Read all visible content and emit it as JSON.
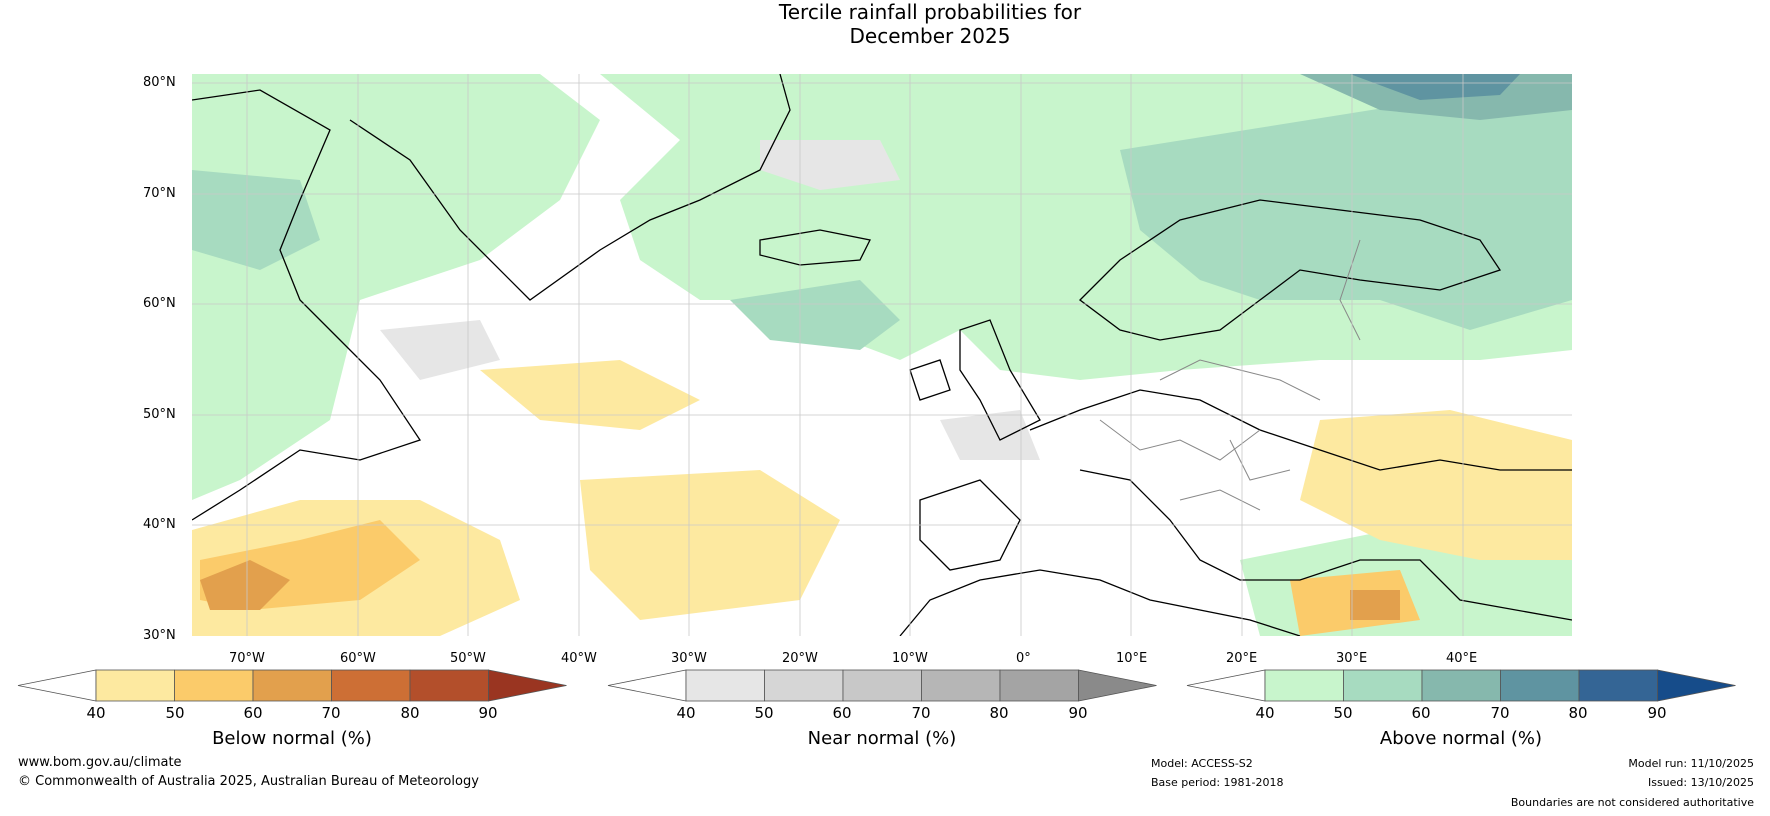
{
  "title": {
    "line1": "Tercile rainfall probabilities for",
    "line2": "December 2025"
  },
  "map": {
    "lat_labels": [
      "80°N",
      "70°N",
      "60°N",
      "50°N",
      "40°N",
      "30°N"
    ],
    "lon_labels": [
      "70°W",
      "60°W",
      "50°W",
      "40°W",
      "30°W",
      "20°W",
      "10°W",
      "0°",
      "10°E",
      "20°E",
      "30°E",
      "40°E"
    ]
  },
  "colorbars": [
    {
      "label": "Below normal (%)",
      "ticks": [
        "40",
        "50",
        "60",
        "70",
        "80",
        "90"
      ],
      "colors": [
        "#ffffff",
        "#fde9a0",
        "#fbcb6a",
        "#e2a04d",
        "#cd6f35",
        "#b34f2b",
        "#9a3521"
      ]
    },
    {
      "label": "Near normal (%)",
      "ticks": [
        "40",
        "50",
        "60",
        "70",
        "80",
        "90"
      ],
      "colors": [
        "#ffffff",
        "#e6e6e6",
        "#d6d6d6",
        "#c8c8c8",
        "#b6b6b6",
        "#a4a4a4",
        "#8a8a8a"
      ]
    },
    {
      "label": "Above normal (%)",
      "ticks": [
        "40",
        "50",
        "60",
        "70",
        "80",
        "90"
      ],
      "colors": [
        "#ffffff",
        "#c8f5cc",
        "#a7dbc0",
        "#86b8ad",
        "#5f94a1",
        "#346595",
        "#164c8a"
      ]
    }
  ],
  "footer": {
    "website": "www.bom.gov.au/climate",
    "copyright": "© Commonwealth of Australia 2025, Australian Bureau of Meteorology",
    "model": "Model: ACCESS-S2",
    "base_period": "Base period: 1981-2018",
    "model_run": "Model run: 11/10/2025",
    "issued": "Issued: 13/10/2025",
    "disclaimer": "Boundaries are not considered authoritative"
  }
}
